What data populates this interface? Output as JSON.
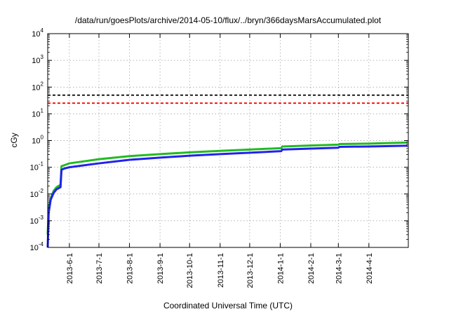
{
  "chart_data": {
    "type": "line",
    "title": "/data/run/goesPlots/archive/2014-05-10/flux/../bryn/366daysMarsAccumulated.plot",
    "xlabel": "Coordinated Universal Time (UTC)",
    "ylabel": "cGy",
    "yscale": "log",
    "ylim": [
      0.0001,
      10000
    ],
    "xlim": [
      "2013-05-10",
      "2014-05-11"
    ],
    "grid": true,
    "legend": "none",
    "x_ticks": [
      "2013-6-1",
      "2013-7-1",
      "2013-8-1",
      "2013-9-1",
      "2013-10-1",
      "2013-11-1",
      "2013-12-1",
      "2014-1-1",
      "2014-2-1",
      "2014-3-1",
      "2014-4-1"
    ],
    "y_ticks": [
      {
        "base": "10",
        "exp": "-4",
        "value": 0.0001
      },
      {
        "base": "10",
        "exp": "-3",
        "value": 0.001
      },
      {
        "base": "10",
        "exp": "-2",
        "value": 0.01
      },
      {
        "base": "10",
        "exp": "-1",
        "value": 0.1
      },
      {
        "base": "10",
        "exp": "0",
        "value": 1
      },
      {
        "base": "10",
        "exp": "1",
        "value": 10
      },
      {
        "base": "10",
        "exp": "2",
        "value": 100
      },
      {
        "base": "10",
        "exp": "3",
        "value": 1000
      },
      {
        "base": "10",
        "exp": "4",
        "value": 10000
      }
    ],
    "reference_lines": [
      {
        "y": 50,
        "color": "#000000",
        "style": "dashed"
      },
      {
        "y": 25,
        "color": "#ff0000",
        "style": "dashed"
      }
    ],
    "series": [
      {
        "color": "#22bb22",
        "x": [
          "2013-05-10",
          "2013-05-11",
          "2013-05-13",
          "2013-05-16",
          "2013-05-19",
          "2013-05-23",
          "2013-05-24",
          "2013-05-27",
          "2013-06-01",
          "2013-07-01",
          "2013-08-01",
          "2013-09-01",
          "2013-10-01",
          "2013-11-01",
          "2013-12-01",
          "2014-01-02",
          "2014-01-03",
          "2014-02-01",
          "2014-03-01",
          "2014-03-02",
          "2014-04-01",
          "2014-05-10"
        ],
        "y": [
          0.0003,
          0.003,
          0.007,
          0.013,
          0.018,
          0.022,
          0.11,
          0.12,
          0.14,
          0.2,
          0.26,
          0.31,
          0.36,
          0.41,
          0.46,
          0.52,
          0.6,
          0.65,
          0.7,
          0.74,
          0.77,
          0.84
        ]
      },
      {
        "color": "#2222ee",
        "x": [
          "2013-05-10",
          "2013-05-11",
          "2013-05-13",
          "2013-05-16",
          "2013-05-19",
          "2013-05-23",
          "2013-05-24",
          "2013-05-27",
          "2013-06-01",
          "2013-07-01",
          "2013-08-01",
          "2013-09-01",
          "2013-10-01",
          "2013-11-01",
          "2013-12-01",
          "2014-01-02",
          "2014-01-03",
          "2014-02-01",
          "2014-03-01",
          "2014-03-02",
          "2014-04-01",
          "2014-05-10"
        ],
        "y": [
          0.0001,
          0.002,
          0.006,
          0.011,
          0.015,
          0.018,
          0.08,
          0.09,
          0.1,
          0.14,
          0.19,
          0.23,
          0.27,
          0.31,
          0.35,
          0.4,
          0.46,
          0.5,
          0.54,
          0.58,
          0.6,
          0.64
        ]
      }
    ]
  }
}
